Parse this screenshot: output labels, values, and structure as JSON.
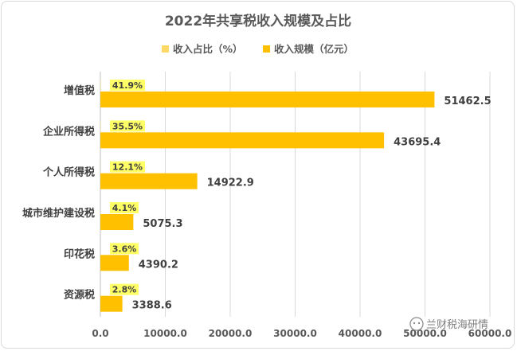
{
  "chart_data": {
    "type": "bar",
    "orientation": "horizontal",
    "title": "2022年共享税收入规模及占比",
    "categories": [
      "增值税",
      "企业所得税",
      "个人所得税",
      "城市维护建设税",
      "印花税",
      "资源税"
    ],
    "series": [
      {
        "name": "收入占比（%）",
        "values": [
          41.9,
          35.5,
          12.1,
          4.1,
          3.6,
          2.8
        ],
        "labels": [
          "41.9%",
          "35.5%",
          "12.1%",
          "4.1%",
          "3.6%",
          "2.8%"
        ],
        "color": "#ffd966",
        "label_highlight": "#ffff66"
      },
      {
        "name": "收入规模（亿元）",
        "values": [
          51462.5,
          43695.4,
          14922.9,
          5075.3,
          4390.2,
          3388.6
        ],
        "labels": [
          "51462.5",
          "43695.4",
          "14922.9",
          "5075.3",
          "4390.2",
          "3388.6"
        ],
        "color": "#ffc000"
      }
    ],
    "xlim": [
      0,
      60000
    ],
    "x_ticks": [
      "0.0",
      "10000.0",
      "20000.0",
      "30000.0",
      "40000.0",
      "50000.0",
      "60000.0"
    ],
    "grid": true,
    "legend_position": "top"
  },
  "watermark": "兰财税海研情"
}
